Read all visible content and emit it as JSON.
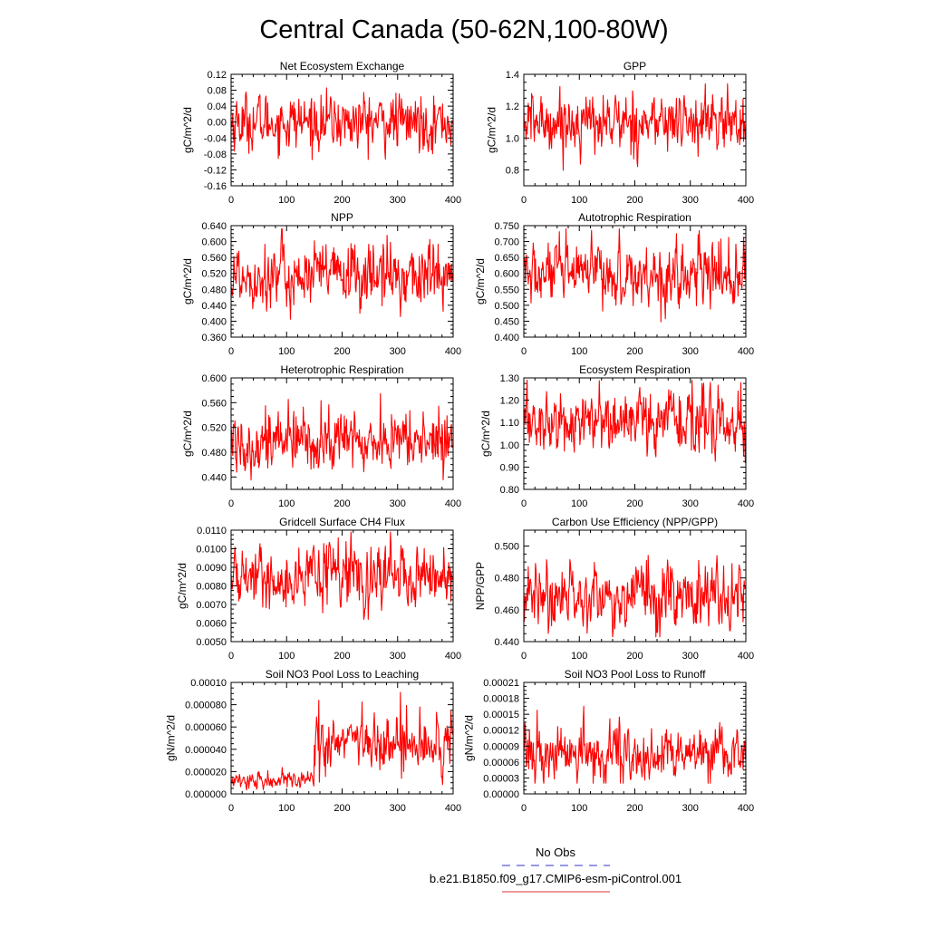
{
  "title": "Central Canada (50-62N,100-80W)",
  "legend": {
    "obs_label": "No Obs",
    "model_label": "b.e21.B1850.f09_g17.CMIP6-esm-piControl.001",
    "obs_color": "#3333cc",
    "model_color": "#dd3333"
  },
  "colors": {
    "line": "#ff0000",
    "axis": "#000000"
  },
  "chart_data": [
    {
      "type": "line",
      "title": "Net Ecosystem Exchange",
      "ylabel": "gC/m^2/d",
      "xlim": [
        0,
        400
      ],
      "xticks": [
        0,
        100,
        200,
        300,
        400
      ],
      "ylim": [
        -0.16,
        0.12
      ],
      "yticks": [
        "-0.16",
        "-0.12",
        "-0.08",
        "-0.04",
        "0.00",
        "0.04",
        "0.08",
        "0.12"
      ],
      "series": [
        {
          "name": "model",
          "mean": 0.0,
          "sd": 0.035,
          "min": -0.123,
          "max": 0.11
        }
      ]
    },
    {
      "type": "line",
      "title": "GPP",
      "ylabel": "gC/m^2/d",
      "xlim": [
        0,
        400
      ],
      "xticks": [
        0,
        100,
        200,
        300,
        400
      ],
      "ylim": [
        0.7,
        1.4
      ],
      "yticks": [
        "0.8",
        "1.0",
        "1.2",
        "1.4"
      ],
      "series": [
        {
          "name": "model",
          "mean": 1.1,
          "sd": 0.09,
          "min": 0.78,
          "max": 1.34
        }
      ]
    },
    {
      "type": "line",
      "title": "NPP",
      "ylabel": "gC/m^2/d",
      "xlim": [
        0,
        400
      ],
      "xticks": [
        0,
        100,
        200,
        300,
        400
      ],
      "ylim": [
        0.36,
        0.64
      ],
      "yticks": [
        "0.360",
        "0.400",
        "0.440",
        "0.480",
        "0.520",
        "0.560",
        "0.600",
        "0.640"
      ],
      "series": [
        {
          "name": "model",
          "mean": 0.515,
          "sd": 0.042,
          "min": 0.365,
          "max": 0.632
        }
      ]
    },
    {
      "type": "line",
      "title": "Autotrophic Respiration",
      "ylabel": "gC/m^2/d",
      "xlim": [
        0,
        400
      ],
      "xticks": [
        0,
        100,
        200,
        300,
        400
      ],
      "ylim": [
        0.4,
        0.75
      ],
      "yticks": [
        "0.400",
        "0.450",
        "0.500",
        "0.550",
        "0.600",
        "0.650",
        "0.700",
        "0.750"
      ],
      "series": [
        {
          "name": "model",
          "mean": 0.595,
          "sd": 0.05,
          "min": 0.42,
          "max": 0.74
        }
      ]
    },
    {
      "type": "line",
      "title": "Heterotrophic Respiration",
      "ylabel": "gC/m^2/d",
      "xlim": [
        0,
        400
      ],
      "xticks": [
        0,
        100,
        200,
        300,
        400
      ],
      "ylim": [
        0.42,
        0.6
      ],
      "yticks": [
        "0.440",
        "0.480",
        "0.520",
        "0.560",
        "0.600"
      ],
      "series": [
        {
          "name": "model",
          "mean": 0.498,
          "sd": 0.025,
          "min": 0.435,
          "max": 0.582
        }
      ]
    },
    {
      "type": "line",
      "title": "Ecosystem Respiration",
      "ylabel": "gC/m^2/d",
      "xlim": [
        0,
        400
      ],
      "xticks": [
        0,
        100,
        200,
        300,
        400
      ],
      "ylim": [
        0.8,
        1.3
      ],
      "yticks": [
        "0.80",
        "0.90",
        "1.00",
        "1.10",
        "1.20",
        "1.30"
      ],
      "series": [
        {
          "name": "model",
          "mean": 1.1,
          "sd": 0.07,
          "min": 0.87,
          "max": 1.29
        }
      ]
    },
    {
      "type": "line",
      "title": "Gridcell Surface CH4 Flux",
      "ylabel": "gC/m^2/d",
      "xlim": [
        0,
        400
      ],
      "xticks": [
        0,
        100,
        200,
        300,
        400
      ],
      "ylim": [
        0.005,
        0.011
      ],
      "yticks": [
        "0.0050",
        "0.0060",
        "0.0070",
        "0.0080",
        "0.0090",
        "0.0100",
        "0.0110"
      ],
      "series": [
        {
          "name": "model",
          "mean": 0.0085,
          "sd": 0.0008,
          "min": 0.0062,
          "max": 0.0109
        }
      ]
    },
    {
      "type": "line",
      "title": "Carbon Use Efficiency (NPP/GPP)",
      "ylabel": "NPP/GPP",
      "xlim": [
        0,
        400
      ],
      "xticks": [
        0,
        100,
        200,
        300,
        400
      ],
      "ylim": [
        0.44,
        0.51
      ],
      "yticks": [
        "0.440",
        "0.460",
        "0.480",
        "0.500"
      ],
      "series": [
        {
          "name": "model",
          "mean": 0.469,
          "sd": 0.01,
          "min": 0.443,
          "max": 0.501
        }
      ]
    },
    {
      "type": "line",
      "title": "Soil NO3 Pool Loss to Leaching",
      "ylabel": "gN/m^2/d",
      "xlim": [
        0,
        400
      ],
      "xticks": [
        0,
        100,
        200,
        300,
        400
      ],
      "ylim": [
        0.0,
        0.0001
      ],
      "yticks": [
        "0.000000",
        "0.000020",
        "0.000040",
        "0.000060",
        "0.000080",
        "0.00010"
      ],
      "series": [
        {
          "name": "model",
          "segments": [
            {
              "x0": 0,
              "x1": 150,
              "mean": 1.2e-05,
              "sd": 4e-06
            },
            {
              "x0": 150,
              "x1": 400,
              "mean": 4.5e-05,
              "sd": 1.2e-05
            }
          ],
          "peaks": [
            [
              158,
              8.4e-05
            ],
            [
              305,
              9.1e-05
            ],
            [
              340,
              7.8e-05
            ]
          ],
          "min": 1e-06,
          "max": 9.1e-05
        }
      ]
    },
    {
      "type": "line",
      "title": "Soil NO3 Pool Loss to Runoff",
      "ylabel": "gN/m^2/d",
      "xlim": [
        0,
        400
      ],
      "xticks": [
        0,
        100,
        200,
        300,
        400
      ],
      "ylim": [
        0.0,
        0.00021
      ],
      "yticks": [
        "0.00000",
        "0.00003",
        "0.00006",
        "0.00009",
        "0.00012",
        "0.00015",
        "0.00018",
        "0.00021"
      ],
      "series": [
        {
          "name": "model",
          "mean": 7.5e-05,
          "sd": 2.5e-05,
          "min": 2e-05,
          "max": 0.00018
        }
      ]
    }
  ]
}
